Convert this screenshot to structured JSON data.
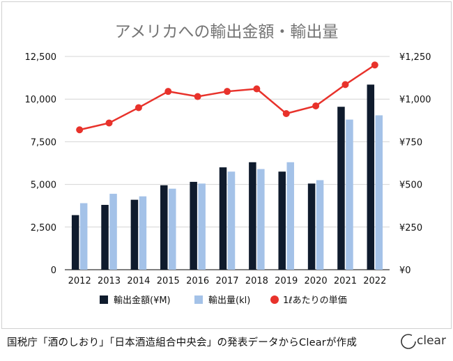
{
  "chart_data": {
    "type": "bar+line",
    "title": "アメリカへの輸出金額・輸出量",
    "categories": [
      "2012",
      "2013",
      "2014",
      "2015",
      "2016",
      "2017",
      "2018",
      "2019",
      "2020",
      "2021",
      "2022"
    ],
    "series": [
      {
        "name": "輸出金額(¥M)",
        "kind": "bar",
        "axis": "left",
        "color": "#0f1b2d",
        "values": [
          3200,
          3800,
          4100,
          4950,
          5150,
          6000,
          6300,
          5750,
          5050,
          9550,
          10850
        ]
      },
      {
        "name": "輸出量(kl)",
        "kind": "bar",
        "axis": "left",
        "color": "#a4c2e8",
        "values": [
          3900,
          4450,
          4300,
          4750,
          5050,
          5750,
          5900,
          6300,
          5250,
          8800,
          9050
        ]
      },
      {
        "name": "1ℓあたりの単価",
        "kind": "line",
        "axis": "right",
        "color": "#e8322b",
        "values": [
          820,
          860,
          950,
          1045,
          1015,
          1045,
          1060,
          915,
          960,
          1085,
          1200
        ]
      }
    ],
    "left_axis": {
      "min": 0,
      "max": 12500,
      "ticks": [
        "0",
        "2,500",
        "5,000",
        "7,500",
        "10,000",
        "12,500"
      ]
    },
    "right_axis": {
      "min": 0,
      "max": 1250,
      "ticks": [
        "¥0",
        "¥250",
        "¥500",
        "¥750",
        "¥1,000",
        "¥1,250"
      ]
    },
    "legend": "bottom",
    "grid": true
  },
  "footer": {
    "source": "国税庁「酒のしおり」「日本酒造組合中央会」の発表データからClearが作成",
    "logo": "clear"
  }
}
